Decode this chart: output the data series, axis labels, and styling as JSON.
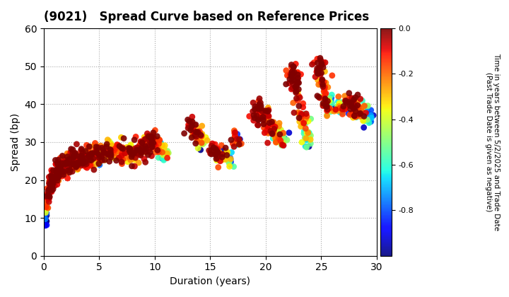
{
  "title": "(9021)   Spread Curve based on Reference Prices",
  "xlabel": "Duration (years)",
  "ylabel": "Spread (bp)",
  "xlim": [
    0,
    30
  ],
  "ylim": [
    0,
    60
  ],
  "xticks": [
    0,
    5,
    10,
    15,
    20,
    25,
    30
  ],
  "yticks": [
    0,
    10,
    20,
    30,
    40,
    50,
    60
  ],
  "colorbar_label": "Time in years between 5/2/2025 and Trade Date\n(Past Trade Date is given as negative)",
  "cmap": "jet",
  "vmin": -1.0,
  "vmax": 0.0,
  "colorbar_ticks": [
    0.0,
    -0.2,
    -0.4,
    -0.6,
    -0.8
  ],
  "background_color": "#ffffff",
  "grid_color": "#aaaaaa",
  "grid_style": "dotted",
  "marker_size": 40
}
